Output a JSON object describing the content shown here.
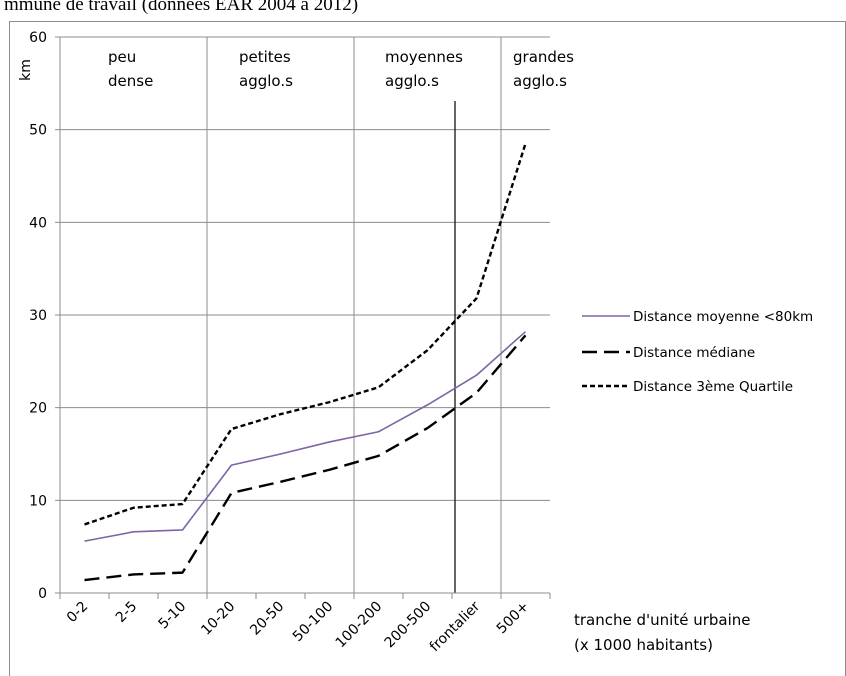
{
  "title": "mmune de travail (données EAR 2004 à 2012)",
  "chart_data": {
    "type": "line",
    "categories": [
      "0-2",
      "2-5",
      "5-10",
      "10-20",
      "20-50",
      "50-100",
      "100-200",
      "200-500",
      "frontalier",
      "500+"
    ],
    "ylim": [
      0,
      60
    ],
    "yticks": [
      0,
      10,
      20,
      30,
      40,
      50,
      60
    ],
    "ylabel": "km",
    "xlabel_lines": [
      "tranche d'unité urbaine",
      "(x 1000 habitants)"
    ],
    "bands": [
      {
        "lines": [
          "peu",
          "dense"
        ]
      },
      {
        "lines": [
          "petites",
          "agglo.s"
        ]
      },
      {
        "lines": [
          "moyennes",
          "agglo.s"
        ]
      },
      {
        "lines": [
          "grandes",
          "agglo.s"
        ]
      }
    ],
    "series": [
      {
        "name": "Distance moyenne <80km",
        "color": "#7e64a6",
        "style": "solid",
        "values": [
          5.6,
          6.6,
          6.8,
          13.8,
          15.0,
          16.3,
          17.4,
          20.3,
          23.5,
          28.2
        ]
      },
      {
        "name": "Distance médiane",
        "color": "#000000",
        "style": "dashed",
        "values": [
          1.4,
          2.0,
          2.2,
          10.8,
          12.0,
          13.3,
          14.8,
          17.8,
          21.6,
          27.8
        ]
      },
      {
        "name": "Distance 3ème Quartile",
        "color": "#000000",
        "style": "dotted",
        "values": [
          7.4,
          9.2,
          9.6,
          17.7,
          19.3,
          20.6,
          22.2,
          26.2,
          31.8,
          48.5
        ]
      }
    ],
    "grid": true,
    "legend_position": "right"
  }
}
